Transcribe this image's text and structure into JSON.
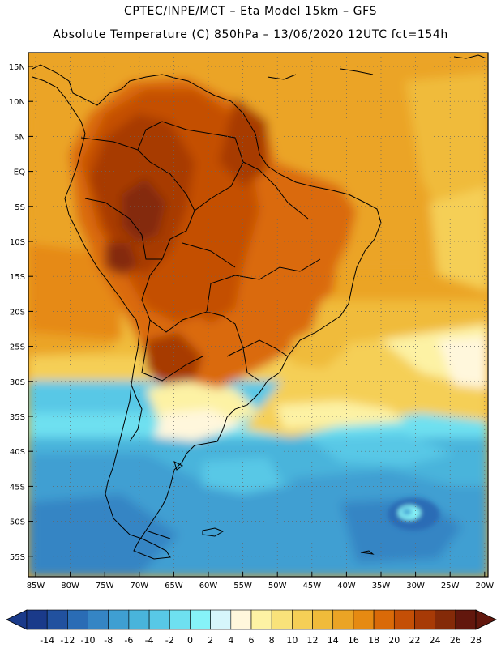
{
  "header": {
    "line1": "CPTEC/INPE/MCT –  Eta Model 15km – GFS",
    "line2": "Absolute Temperature (C) 850hPa – 13/06/2020 12UTC fct=154h"
  },
  "axes": {
    "lat_labels": [
      "15N",
      "10N",
      "5N",
      "EQ",
      "5S",
      "10S",
      "15S",
      "20S",
      "25S",
      "30S",
      "35S",
      "40S",
      "45S",
      "50S",
      "55S"
    ],
    "lon_labels": [
      "85W",
      "80W",
      "75W",
      "70W",
      "65W",
      "60W",
      "55W",
      "50W",
      "45W",
      "40W",
      "35W",
      "30W",
      "25W",
      "20W"
    ]
  },
  "legend": {
    "labels": [
      "-14",
      "-12",
      "-10",
      "-8",
      "-6",
      "-4",
      "-2",
      "0",
      "2",
      "4",
      "6",
      "8",
      "10",
      "12",
      "14",
      "16",
      "18",
      "20",
      "22",
      "24",
      "26",
      "28"
    ],
    "colors": [
      "#1a3a8a",
      "#21519f",
      "#2a6cb5",
      "#3585c4",
      "#3f9fd2",
      "#49b4db",
      "#58c8e6",
      "#6ee0f0",
      "#86f3f8",
      "#d6f6fb",
      "#fff7dc",
      "#fdf2a4",
      "#f9e27a",
      "#f5cf56",
      "#f0bb3a",
      "#eba425",
      "#e68a12",
      "#da6a08",
      "#c44f06",
      "#a73a06",
      "#842a08",
      "#62170d"
    ]
  }
}
